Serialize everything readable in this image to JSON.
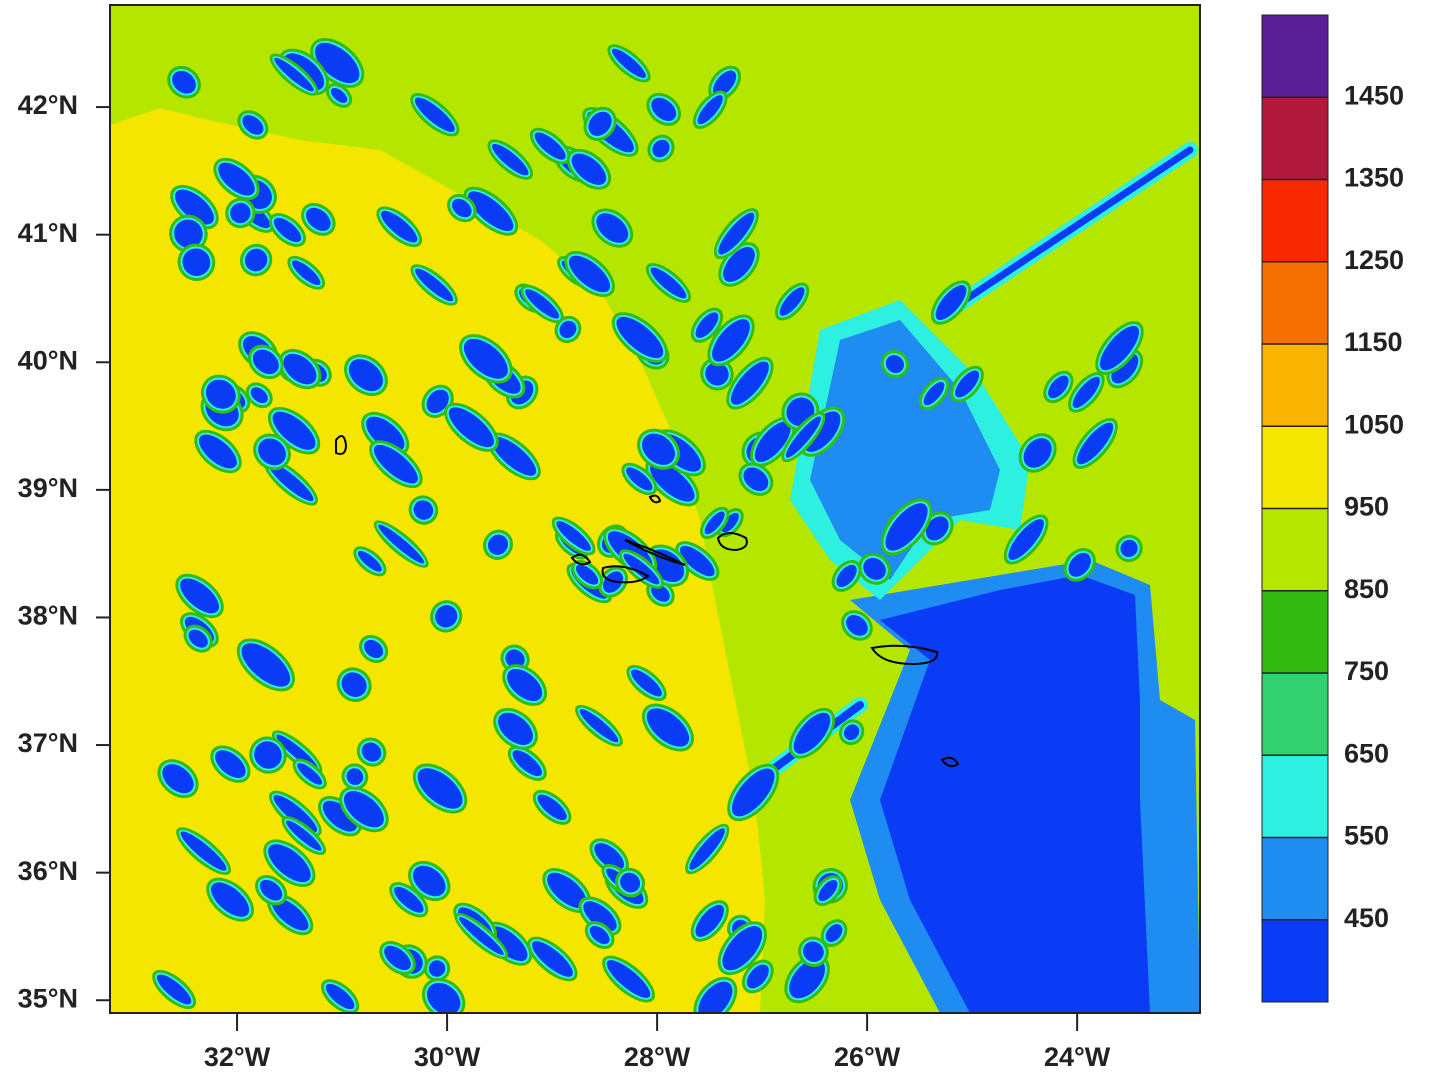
{
  "chart_data": {
    "type": "contour",
    "xlim": [
      -33.21,
      -22.83
    ],
    "ylim": [
      34.9,
      42.8
    ],
    "xticks": [
      {
        "value": -32,
        "label": "32°W"
      },
      {
        "value": -30,
        "label": "30°W"
      },
      {
        "value": -28,
        "label": "28°W"
      },
      {
        "value": -26,
        "label": "26°W"
      },
      {
        "value": -24,
        "label": "24°W"
      }
    ],
    "yticks": [
      {
        "value": 35,
        "label": "35°N"
      },
      {
        "value": 36,
        "label": "36°N"
      },
      {
        "value": 37,
        "label": "37°N"
      },
      {
        "value": 38,
        "label": "38°N"
      },
      {
        "value": 39,
        "label": "39°N"
      },
      {
        "value": 40,
        "label": "40°N"
      },
      {
        "value": 41,
        "label": "41°N"
      },
      {
        "value": 42,
        "label": "42°N"
      }
    ],
    "colorbar": {
      "levels": [
        450,
        550,
        650,
        750,
        850,
        950,
        1050,
        1150,
        1250,
        1350,
        1450
      ],
      "colors": [
        "#0a3cf5",
        "#1e8cf0",
        "#2ef0e0",
        "#33d070",
        "#33bb11",
        "#b4e600",
        "#f5e600",
        "#f8b400",
        "#f57000",
        "#f82800",
        "#b0183c",
        "#5a1e96"
      ]
    }
  }
}
